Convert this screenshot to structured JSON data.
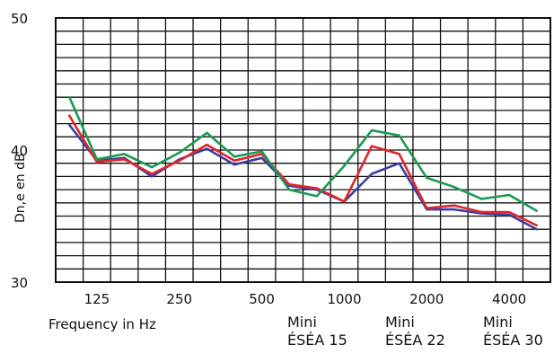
{
  "chart_data": {
    "type": "line",
    "title": "",
    "xlabel": "Frequency in Hz",
    "ylabel": "Dn,e en dB",
    "ylim": [
      30,
      50
    ],
    "yticks": [
      30,
      40,
      50
    ],
    "x_tick_labels": [
      "125",
      "250",
      "500",
      "1000",
      "2000",
      "4000"
    ],
    "x": [
      100,
      125,
      160,
      200,
      250,
      315,
      400,
      500,
      630,
      800,
      1000,
      1250,
      1600,
      2000,
      2500,
      3150,
      4000,
      5000
    ],
    "grid": true,
    "legend_position": "bottom-right",
    "series": [
      {
        "name": "Mini ÉSÉA 15",
        "color": "#3b3fa0",
        "values": [
          41.9,
          39.2,
          39.4,
          38.0,
          39.3,
          40.1,
          38.9,
          39.4,
          37.3,
          37.0,
          36.1,
          38.2,
          39.0,
          35.5,
          35.5,
          35.2,
          35.1,
          34.0
        ]
      },
      {
        "name": "Mini ÉSÉA 22",
        "color": "#e0262b",
        "values": [
          42.6,
          39.1,
          39.3,
          38.2,
          39.2,
          40.4,
          39.2,
          39.7,
          37.4,
          37.1,
          36.1,
          40.3,
          39.7,
          35.6,
          35.8,
          35.3,
          35.3,
          34.3
        ]
      },
      {
        "name": "Mini ÉSÉA 30",
        "color": "#1a9a52",
        "values": [
          44.0,
          39.3,
          39.7,
          38.7,
          39.8,
          41.3,
          39.5,
          39.9,
          37.0,
          36.5,
          38.8,
          41.5,
          41.1,
          37.9,
          37.2,
          36.3,
          36.6,
          35.4
        ]
      }
    ]
  }
}
